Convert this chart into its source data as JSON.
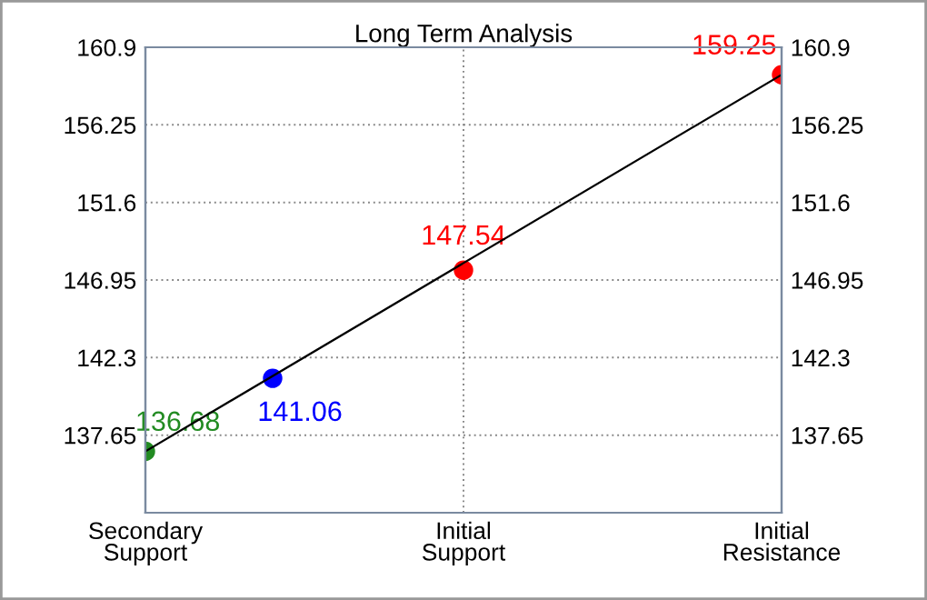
{
  "chart_data": {
    "type": "scatter",
    "title": "Long Term Analysis",
    "categories": [
      "Secondary\nSupport",
      null,
      null,
      null,
      null,
      "Initial\nSupport",
      null,
      null,
      null,
      null,
      "Initial\nResistance"
    ],
    "ylim": [
      133.0,
      160.9
    ],
    "yticks": [
      137.65,
      142.3,
      146.95,
      151.6,
      156.25,
      160.9
    ],
    "y2lim": [
      133.0,
      160.9
    ],
    "y2ticks": [
      137.65,
      142.3,
      146.95,
      151.6,
      156.25,
      160.9
    ],
    "grid": true,
    "marker": "circle",
    "data_labels": true,
    "series": [
      {
        "type": "line",
        "values": [
          136.68,
          null,
          null,
          null,
          null,
          null,
          null,
          null,
          null,
          null,
          159.25
        ],
        "value_labels": [
          null,
          null,
          null,
          null,
          null,
          null,
          null,
          null,
          null,
          null,
          null
        ],
        "color": "#000000",
        "marker": "none"
      },
      {
        "values": [
          136.68,
          null,
          141.06,
          null,
          null,
          147.54,
          null,
          null,
          null,
          null,
          159.25
        ],
        "colors": [
          "#228b22",
          null,
          "#0000ff",
          null,
          null,
          "#ff0000",
          null,
          null,
          null,
          null,
          "#ff0000"
        ]
      }
    ]
  }
}
